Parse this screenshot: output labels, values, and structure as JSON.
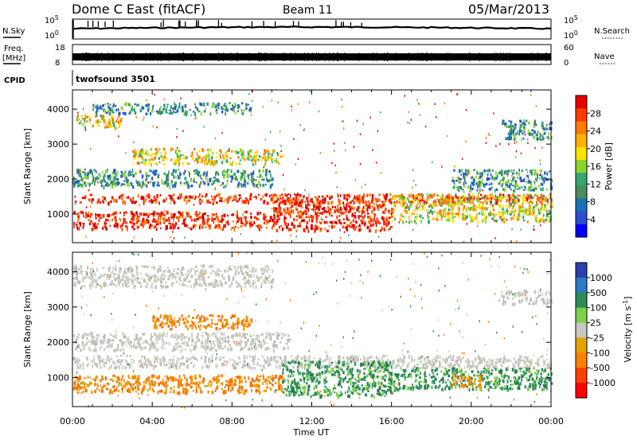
{
  "header": {
    "station": "Dome C East (fitACF)",
    "beam": "Beam 11",
    "date": "05/Mar/2013"
  },
  "status_panels": {
    "nsky_label": "N.Sky",
    "nsky_ticks": [
      "10^5",
      "10^0"
    ],
    "nsearch_label": "N.Search",
    "freq_label": "Freq.",
    "freq_unit": "[MHz]",
    "freq_ticks": [
      "18",
      "8"
    ],
    "nave_label": "Nave",
    "nave_ticks": [
      "60",
      "0"
    ],
    "cpid_label": "CPID",
    "cpid_value": "twofsound 3501"
  },
  "chart_data": [
    {
      "type": "heatmap",
      "name_on_chart": "power",
      "ylabel": "Slant Range [km]",
      "yticks": [
        1000,
        2000,
        3000,
        4000
      ],
      "ylim": [
        180,
        4550
      ],
      "xlim": [
        0,
        24
      ],
      "colorbar": {
        "label": "Power [dB]",
        "ticks": [
          "28",
          "24",
          "20",
          "16",
          "12",
          "8",
          "4"
        ],
        "colors": [
          "#e80000",
          "#ff3b00",
          "#ff7a00",
          "#ffb200",
          "#ffe100",
          "#8ad62d",
          "#34a870",
          "#4a8c5a",
          "#1a6fb8",
          "#2a4fd0",
          "#0000ff"
        ]
      },
      "bands": [
        {
          "t0": 0,
          "t1": 2.5,
          "r0": 3500,
          "r1": 3850,
          "level": "medium"
        },
        {
          "t0": 1,
          "t1": 9,
          "r0": 3900,
          "r1": 4200,
          "level": "low"
        },
        {
          "t0": 3,
          "t1": 10.5,
          "r0": 2450,
          "r1": 2900,
          "level": "medium"
        },
        {
          "t0": 0,
          "t1": 10,
          "r0": 1800,
          "r1": 2300,
          "level": "low"
        },
        {
          "t0": 0,
          "t1": 24,
          "r0": 1350,
          "r1": 1600,
          "level": "high"
        },
        {
          "t0": 0,
          "t1": 10,
          "r0": 600,
          "r1": 1100,
          "level": "high"
        },
        {
          "t0": 10,
          "t1": 16,
          "r0": 550,
          "r1": 1450,
          "level": "high"
        },
        {
          "t0": 16,
          "t1": 24,
          "r0": 800,
          "r1": 1600,
          "level": "medium"
        },
        {
          "t0": 19,
          "t1": 24,
          "r0": 1700,
          "r1": 2300,
          "level": "low"
        },
        {
          "t0": 21.5,
          "t1": 24,
          "r0": 3150,
          "r1": 3700,
          "level": "low"
        }
      ]
    },
    {
      "type": "heatmap",
      "name_on_chart": "velocity",
      "ylabel": "Slant Range [km]",
      "yticks": [
        1000,
        2000,
        3000,
        4000
      ],
      "ylim": [
        180,
        4550
      ],
      "xlim": [
        0,
        24
      ],
      "xticks": [
        "00:00",
        "04:00",
        "08:00",
        "12:00",
        "16:00",
        "20:00",
        "00:00"
      ],
      "xlabel": "Time UT",
      "colorbar": {
        "label": "Velocity [m s^-1]",
        "ticks": [
          "1000",
          "500",
          "100",
          "25",
          "-25",
          "-100",
          "-500",
          "-1000"
        ],
        "colors": [
          "#2a3fb0",
          "#2a7cc8",
          "#2e8b57",
          "#7cd34a",
          "#c8c8c0",
          "#e6a000",
          "#ff8000",
          "#ff4000",
          "#ff0000"
        ]
      },
      "bands": [
        {
          "t0": 0,
          "t1": 10,
          "r0": 3600,
          "r1": 4200,
          "level": "ground"
        },
        {
          "t0": 4,
          "t1": 9,
          "r0": 2400,
          "r1": 2800,
          "level": "neg"
        },
        {
          "t0": 0,
          "t1": 11,
          "r0": 1800,
          "r1": 2300,
          "level": "ground"
        },
        {
          "t0": 0,
          "t1": 24,
          "r0": 1300,
          "r1": 1650,
          "level": "ground"
        },
        {
          "t0": 0,
          "t1": 10.5,
          "r0": 600,
          "r1": 1100,
          "level": "neg"
        },
        {
          "t0": 10.5,
          "t1": 16,
          "r0": 500,
          "r1": 1500,
          "level": "pos"
        },
        {
          "t0": 16,
          "t1": 24,
          "r0": 700,
          "r1": 1300,
          "level": "pos"
        },
        {
          "t0": 19,
          "t1": 20.5,
          "r0": 750,
          "r1": 1100,
          "level": "neg"
        },
        {
          "t0": 21.5,
          "t1": 24,
          "r0": 3100,
          "r1": 3500,
          "level": "ground"
        }
      ]
    }
  ]
}
